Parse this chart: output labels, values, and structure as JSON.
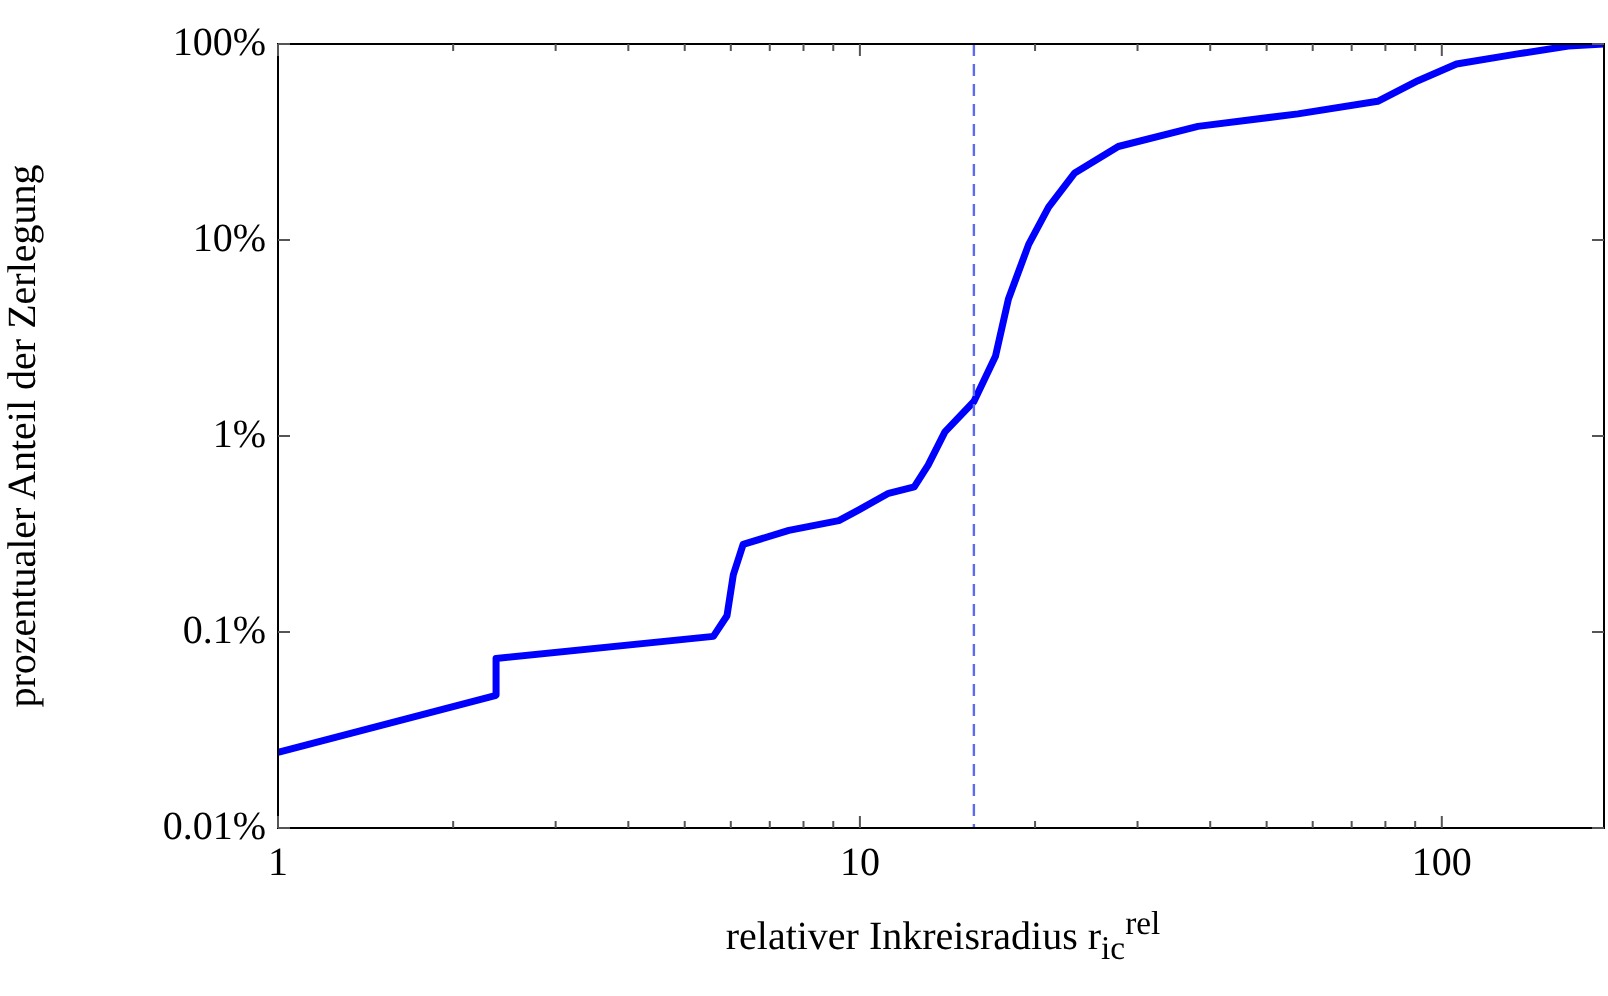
{
  "chart_data": {
    "type": "line",
    "xlabel": "relativer Inkreisradius r$_{ic}$$^{rel}$",
    "ylabel": "prozentualer Anteil der Zerlegung",
    "log": "xy",
    "grid": false,
    "legend": false,
    "marker": "none",
    "line_style": "solid",
    "xlim": [
      1,
      190
    ],
    "ylim": [
      0.01,
      100
    ],
    "xticks": [
      {
        "value": 1,
        "label": "1"
      },
      {
        "value": 2,
        "label": null
      },
      {
        "value": 3,
        "label": null
      },
      {
        "value": 4,
        "label": null
      },
      {
        "value": 5,
        "label": null
      },
      {
        "value": 6,
        "label": null
      },
      {
        "value": 7,
        "label": null
      },
      {
        "value": 8,
        "label": null
      },
      {
        "value": 9,
        "label": null
      },
      {
        "value": 10,
        "label": "10"
      },
      {
        "value": 20,
        "label": null
      },
      {
        "value": 30,
        "label": null
      },
      {
        "value": 40,
        "label": null
      },
      {
        "value": 50,
        "label": null
      },
      {
        "value": 60,
        "label": null
      },
      {
        "value": 70,
        "label": null
      },
      {
        "value": 80,
        "label": null
      },
      {
        "value": 90,
        "label": null
      },
      {
        "value": 100,
        "label": "100"
      }
    ],
    "yticks": [
      {
        "value": 0.01,
        "label": "0.01%"
      },
      {
        "value": 0.1,
        "label": "0.1%"
      },
      {
        "value": 1,
        "label": "1%"
      },
      {
        "value": 10,
        "label": "10%"
      },
      {
        "value": 100,
        "label": "100%"
      }
    ],
    "ref_lines": [
      {
        "axis": "x",
        "value": 15.7,
        "label": null,
        "color": "#5c6bf0",
        "line_style": "dashed"
      }
    ],
    "series": [
      {
        "color": "#0000ff",
        "x": [
          1,
          2.37,
          2.37,
          5.6,
          5.91,
          6.06,
          6.3,
          7.55,
          9.2,
          9.96,
          11.2,
          12.4,
          13.1,
          14,
          15.7,
          17.1,
          18,
          19.5,
          21.1,
          23.4,
          27.8,
          38.1,
          56.6,
          77.6,
          91,
          106,
          135,
          165,
          190
        ],
        "values": [
          0.0243,
          0.0475,
          0.0733,
          0.095,
          0.121,
          0.196,
          0.28,
          0.33,
          0.37,
          0.42,
          0.51,
          0.55,
          0.71,
          1.05,
          1.5,
          2.55,
          5,
          9.5,
          14.7,
          22,
          30,
          38,
          44,
          51,
          65,
          79,
          89,
          97.6,
          100
        ]
      }
    ]
  }
}
